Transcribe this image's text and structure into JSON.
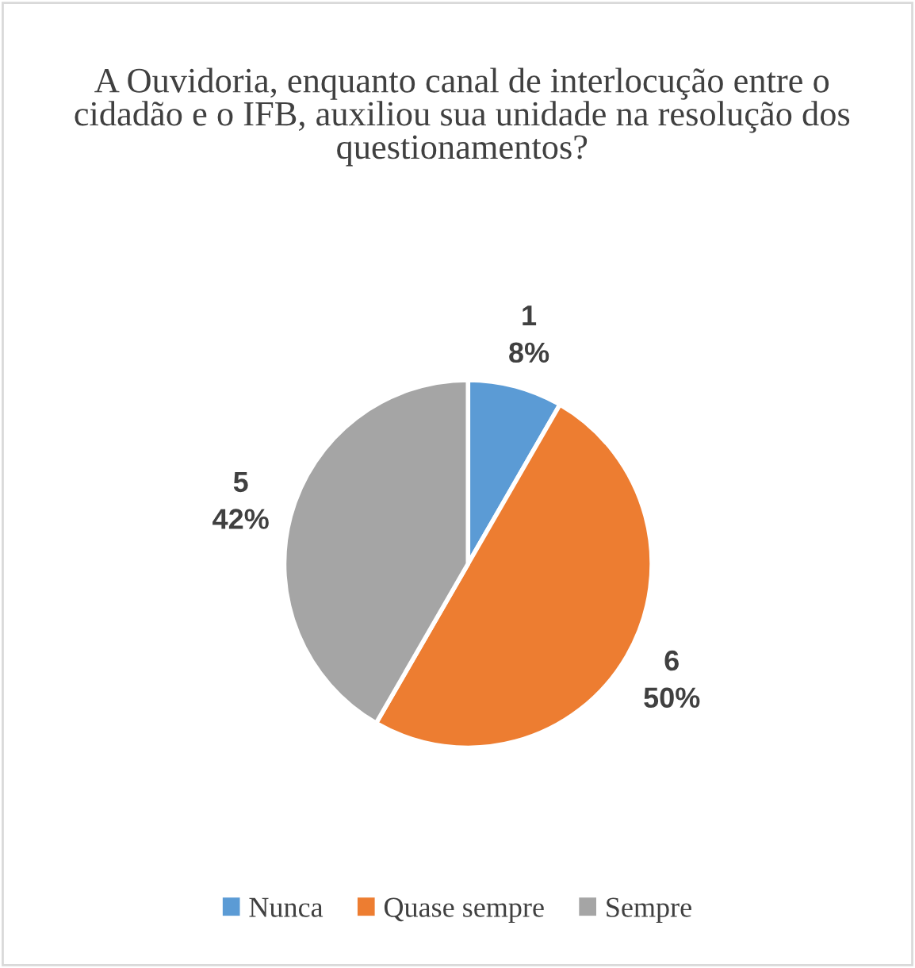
{
  "chart_data": {
    "type": "pie",
    "title": "A Ouvidoria, enquanto canal de interlocução entre o cidadão e o IFB, auxiliou sua unidade na resolução dos questionamentos?",
    "categories": [
      "Nunca",
      "Quase sempre",
      "Sempre"
    ],
    "values": [
      1,
      6,
      5
    ],
    "colors": [
      "#5b9bd5",
      "#ed7d31",
      "#a5a5a5"
    ],
    "value_labels": [
      "1\n8%",
      "6\n50%",
      "5\n42%"
    ],
    "legend": "bottom"
  }
}
